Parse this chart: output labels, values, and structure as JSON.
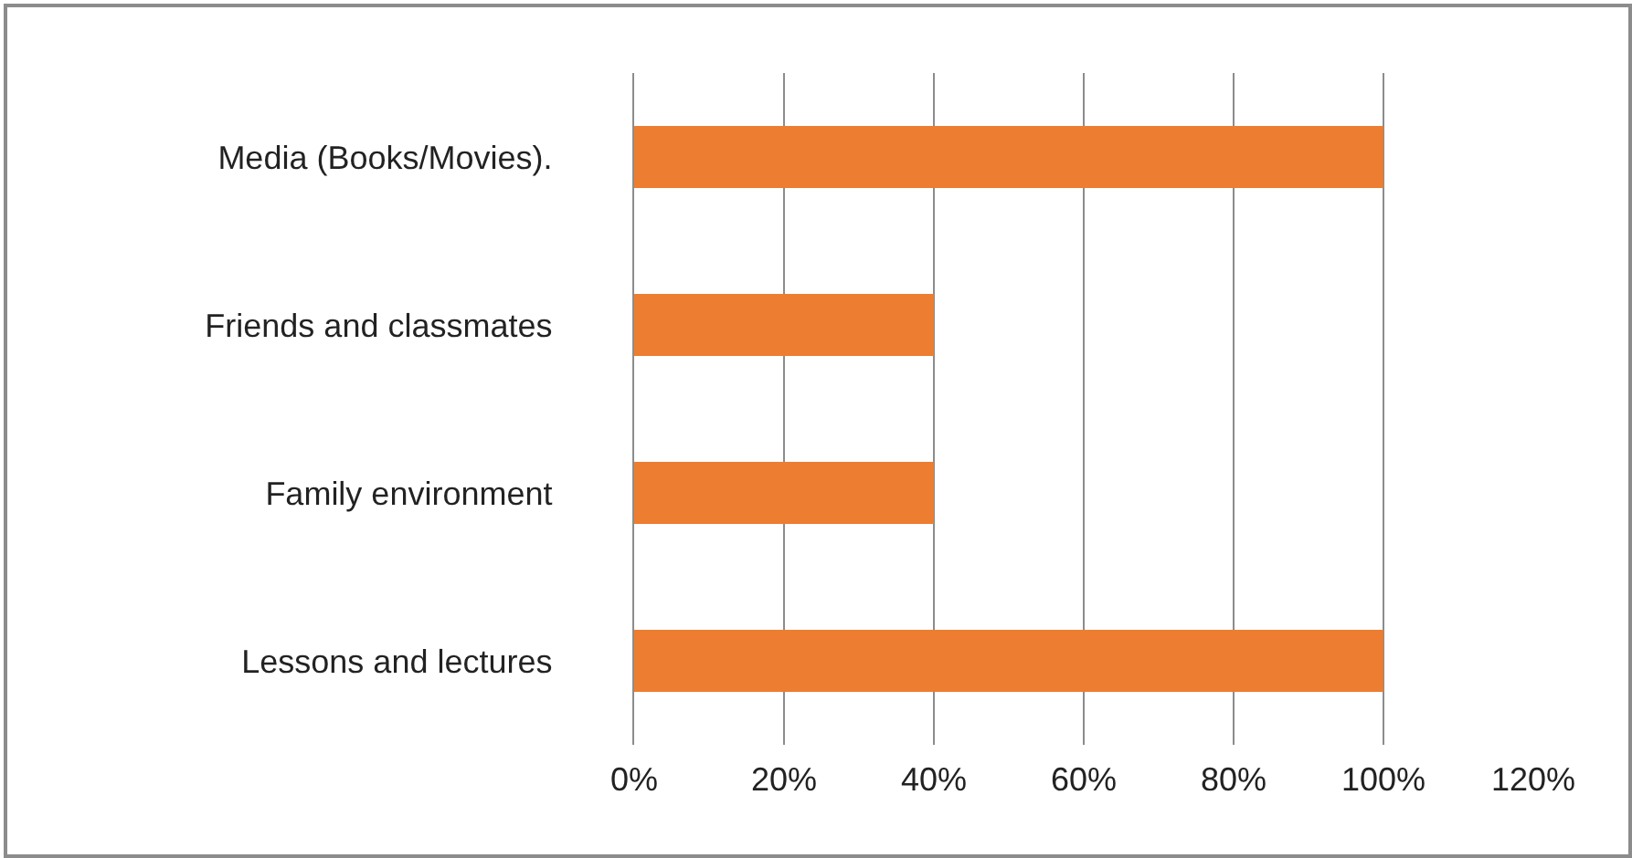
{
  "chart_data": {
    "type": "bar",
    "orientation": "horizontal",
    "categories": [
      "Media (Books/Movies).",
      "Friends and classmates",
      "Family environment",
      "Lessons and lectures"
    ],
    "values": [
      100,
      40,
      40,
      100
    ],
    "color": "#ed7d31",
    "xlim": [
      0,
      120
    ],
    "xticks": [
      {
        "value": 0,
        "label": "0%"
      },
      {
        "value": 20,
        "label": "20%"
      },
      {
        "value": 40,
        "label": "40%"
      },
      {
        "value": 60,
        "label": "60%"
      },
      {
        "value": 80,
        "label": "80%"
      },
      {
        "value": 100,
        "label": "100%"
      },
      {
        "value": 120,
        "label": "120%"
      }
    ],
    "grid": "x",
    "legend": false
  }
}
